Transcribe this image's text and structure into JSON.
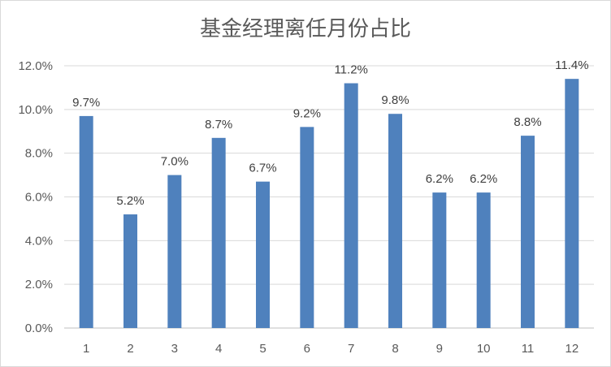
{
  "chart_data": {
    "type": "bar",
    "title": "基金经理离任月份占比",
    "xlabel": "",
    "ylabel": "",
    "categories": [
      "1",
      "2",
      "3",
      "4",
      "5",
      "6",
      "7",
      "8",
      "9",
      "10",
      "11",
      "12"
    ],
    "values": [
      9.7,
      5.2,
      7.0,
      8.7,
      6.7,
      9.2,
      11.2,
      9.8,
      6.2,
      6.2,
      8.8,
      11.4
    ],
    "value_labels": [
      "9.7%",
      "5.2%",
      "7.0%",
      "8.7%",
      "6.7%",
      "9.2%",
      "11.2%",
      "9.8%",
      "6.2%",
      "6.2%",
      "8.8%",
      "11.4%"
    ],
    "ylim": [
      0,
      12
    ],
    "yticks": [
      0,
      2,
      4,
      6,
      8,
      10,
      12
    ],
    "ytick_labels": [
      "0.0%",
      "2.0%",
      "4.0%",
      "6.0%",
      "8.0%",
      "10.0%",
      "12.0%"
    ],
    "grid": true,
    "legend": "none",
    "bar_color": "#4f81bd",
    "grid_color": "#d9d9d9"
  }
}
